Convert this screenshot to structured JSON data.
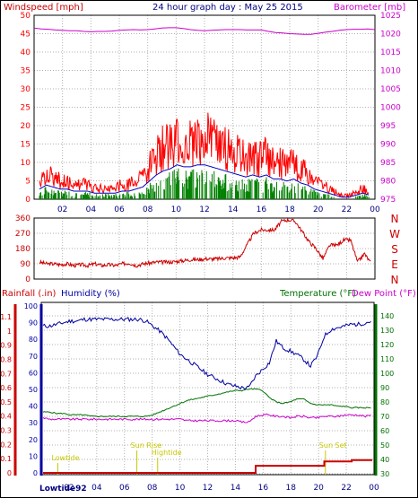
{
  "title": "24 hour graph day : May 25 2015",
  "colors": {
    "wind": "#ff0000",
    "wind_avg": "#0000c0",
    "gust_bar": "#008000",
    "barometer": "#cc00cc",
    "direction": "#cc0000",
    "rain": "#cc0000",
    "humidity": "#0000a0",
    "temperature": "#007000",
    "dewpoint": "#cc00cc",
    "annot": "#c8c800",
    "grid": "#b0b0b0",
    "frame": "#000000"
  },
  "top_panel": {
    "left_label": "Windspeed [mph]",
    "right_label": "Barometer [mb]",
    "left_ticks": [
      "0",
      "5",
      "10",
      "15",
      "20",
      "25",
      "30",
      "35",
      "40",
      "45",
      "50"
    ],
    "right_ticks": [
      "975",
      "980",
      "985",
      "990",
      "995",
      "1000",
      "1005",
      "1010",
      "1015",
      "1020",
      "1025"
    ],
    "x_ticks": [
      "02",
      "04",
      "06",
      "08",
      "10",
      "12",
      "14",
      "16",
      "18",
      "20",
      "22",
      "00"
    ]
  },
  "mid_panel": {
    "left_ticks": [
      "0",
      "90",
      "180",
      "270",
      "360"
    ],
    "right_letters": [
      "N",
      "W",
      "S",
      "E",
      "N"
    ]
  },
  "bottom_panel": {
    "rain_label": "Rainfall (.in)",
    "hum_label": "Humidity (%)",
    "temp_label": "Temperature (°F)",
    "dew_label": "Dew Point (°F)",
    "rain_ticks": [
      "0",
      "0.1",
      "0.2",
      "0.3",
      "0.4",
      "0.5",
      "0.6",
      "0.7",
      "0.8",
      "0.9",
      "1",
      "1.1"
    ],
    "hum_ticks": [
      "0",
      "10",
      "20",
      "30",
      "40",
      "50",
      "60",
      "70",
      "80",
      "90",
      "100"
    ],
    "temp_ticks": [
      "30",
      "40",
      "50",
      "60",
      "70",
      "80",
      "90",
      "100",
      "110",
      "120",
      "130",
      "140"
    ],
    "x_ticks": [
      "02",
      "04",
      "06",
      "08",
      "10",
      "12",
      "14",
      "16",
      "18",
      "20",
      "22",
      "00"
    ],
    "bottom_left": "Lowtide92",
    "annotations": [
      {
        "text": "Lowtide",
        "hour": 1.0
      },
      {
        "text": "Sun Rise",
        "hour": 6.7
      },
      {
        "text": "Hightide",
        "hour": 8.2
      },
      {
        "text": "Sun Set",
        "hour": 20.3
      }
    ]
  },
  "chart_data": [
    {
      "type": "line",
      "title": "24 hour graph day : May 25 2015",
      "x": [
        0,
        0.5,
        1,
        1.5,
        2,
        2.5,
        3,
        3.5,
        4,
        4.5,
        5,
        5.5,
        6,
        6.5,
        7,
        7.5,
        8,
        8.5,
        9,
        9.5,
        10,
        10.5,
        11,
        11.5,
        12,
        12.5,
        13,
        13.5,
        14,
        14.5,
        15,
        15.5,
        16,
        16.5,
        17,
        17.5,
        18,
        18.5,
        19,
        19.5,
        20,
        20.5,
        21,
        21.5,
        22,
        22.5,
        23,
        23.5,
        24
      ],
      "xlabel": "",
      "ylabel": "Windspeed [mph]",
      "ylim": [
        0,
        50
      ],
      "series": [
        {
          "name": "Windspeed [mph]",
          "values": [
            5,
            7,
            6,
            5,
            5,
            4,
            4,
            4,
            3,
            3,
            3,
            3,
            4,
            4,
            5,
            6,
            9,
            12,
            14,
            15,
            17,
            16,
            16,
            17,
            17,
            16,
            15,
            14,
            13,
            12,
            11,
            12,
            11,
            12,
            10,
            10,
            9,
            10,
            8,
            7,
            5,
            4,
            3,
            2,
            1,
            1,
            2,
            3,
            2
          ]
        },
        {
          "name": "Barometer [mb]",
          "values": [
            1021.5,
            1021.3,
            1021.2,
            1021.0,
            1020.9,
            1020.8,
            1020.8,
            1020.6,
            1020.5,
            1020.6,
            1020.6,
            1020.7,
            1020.9,
            1021.0,
            1021.1,
            1021.0,
            1021.1,
            1021.3,
            1021.5,
            1021.6,
            1021.6,
            1021.4,
            1021.1,
            1020.9,
            1020.8,
            1020.9,
            1021.0,
            1021.1,
            1021.1,
            1021.1,
            1021.0,
            1021.0,
            1021.0,
            1020.6,
            1020.3,
            1020.2,
            1020.0,
            1019.9,
            1019.8,
            1019.8,
            1020.1,
            1020.4,
            1020.6,
            1020.9,
            1021.1,
            1021.2,
            1021.2,
            1021.3,
            1021.1
          ]
        }
      ]
    },
    {
      "type": "line",
      "ylabel": "Wind direction",
      "ylim": [
        0,
        360
      ],
      "series": [
        {
          "name": "Direction",
          "values": [
            100,
            90,
            90,
            85,
            90,
            80,
            85,
            80,
            90,
            80,
            85,
            80,
            90,
            95,
            80,
            90,
            95,
            100,
            100,
            100,
            105,
            110,
            115,
            115,
            120,
            118,
            120,
            125,
            125,
            130,
            200,
            270,
            290,
            290,
            290,
            340,
            350,
            340,
            280,
            220,
            180,
            120,
            200,
            200,
            230,
            230,
            100,
            150,
            90
          ]
        }
      ]
    },
    {
      "type": "line",
      "ylabel": "Humidity (%)",
      "ylim": [
        0,
        100
      ],
      "series": [
        {
          "name": "Humidity (%)",
          "values": [
            88,
            88,
            89,
            90,
            91,
            91,
            92,
            92,
            92,
            92,
            92,
            92,
            92,
            92,
            92,
            91,
            88,
            85,
            81,
            76,
            71,
            68,
            65,
            62,
            59,
            57,
            55,
            53,
            52,
            51,
            51,
            58,
            62,
            66,
            79,
            75,
            73,
            71,
            68,
            64,
            70,
            82,
            86,
            87,
            88,
            89,
            89,
            90,
            91
          ]
        },
        {
          "name": "Temperature (°F)",
          "values": [
            73,
            73,
            72,
            72,
            71,
            71,
            71,
            70,
            70,
            70,
            70,
            70,
            70,
            70,
            70,
            70,
            71,
            73,
            75,
            77,
            79,
            81,
            82,
            83,
            84,
            85,
            86,
            87,
            88,
            88,
            89,
            89,
            88,
            83,
            80,
            79,
            80,
            82,
            82,
            79,
            78,
            78,
            78,
            77,
            77,
            76,
            76,
            76,
            76
          ]
        },
        {
          "name": "Dew Point (°F)",
          "values": [
            69,
            68,
            68,
            68,
            68,
            68,
            68,
            68,
            68,
            68,
            68,
            68,
            68,
            68,
            68,
            68,
            68,
            68,
            68,
            68,
            68,
            67,
            67,
            67,
            67,
            67,
            67,
            67,
            67,
            66,
            66,
            70,
            71,
            71,
            70,
            70,
            69,
            70,
            70,
            69,
            69,
            70,
            70,
            70,
            71,
            71,
            71,
            70,
            71
          ]
        },
        {
          "name": "Rainfall (.in)",
          "values": [
            0,
            0,
            0,
            0,
            0,
            0,
            0,
            0,
            0,
            0,
            0,
            0,
            0,
            0,
            0,
            0,
            0,
            0,
            0,
            0,
            0,
            0,
            0,
            0,
            0,
            0,
            0,
            0,
            0,
            0,
            0,
            0.05,
            0.05,
            0.05,
            0.05,
            0.05,
            0.05,
            0.05,
            0.05,
            0.05,
            0.05,
            0.08,
            0.08,
            0.08,
            0.08,
            0.09,
            0.09,
            0.09,
            0.09
          ]
        }
      ]
    }
  ]
}
